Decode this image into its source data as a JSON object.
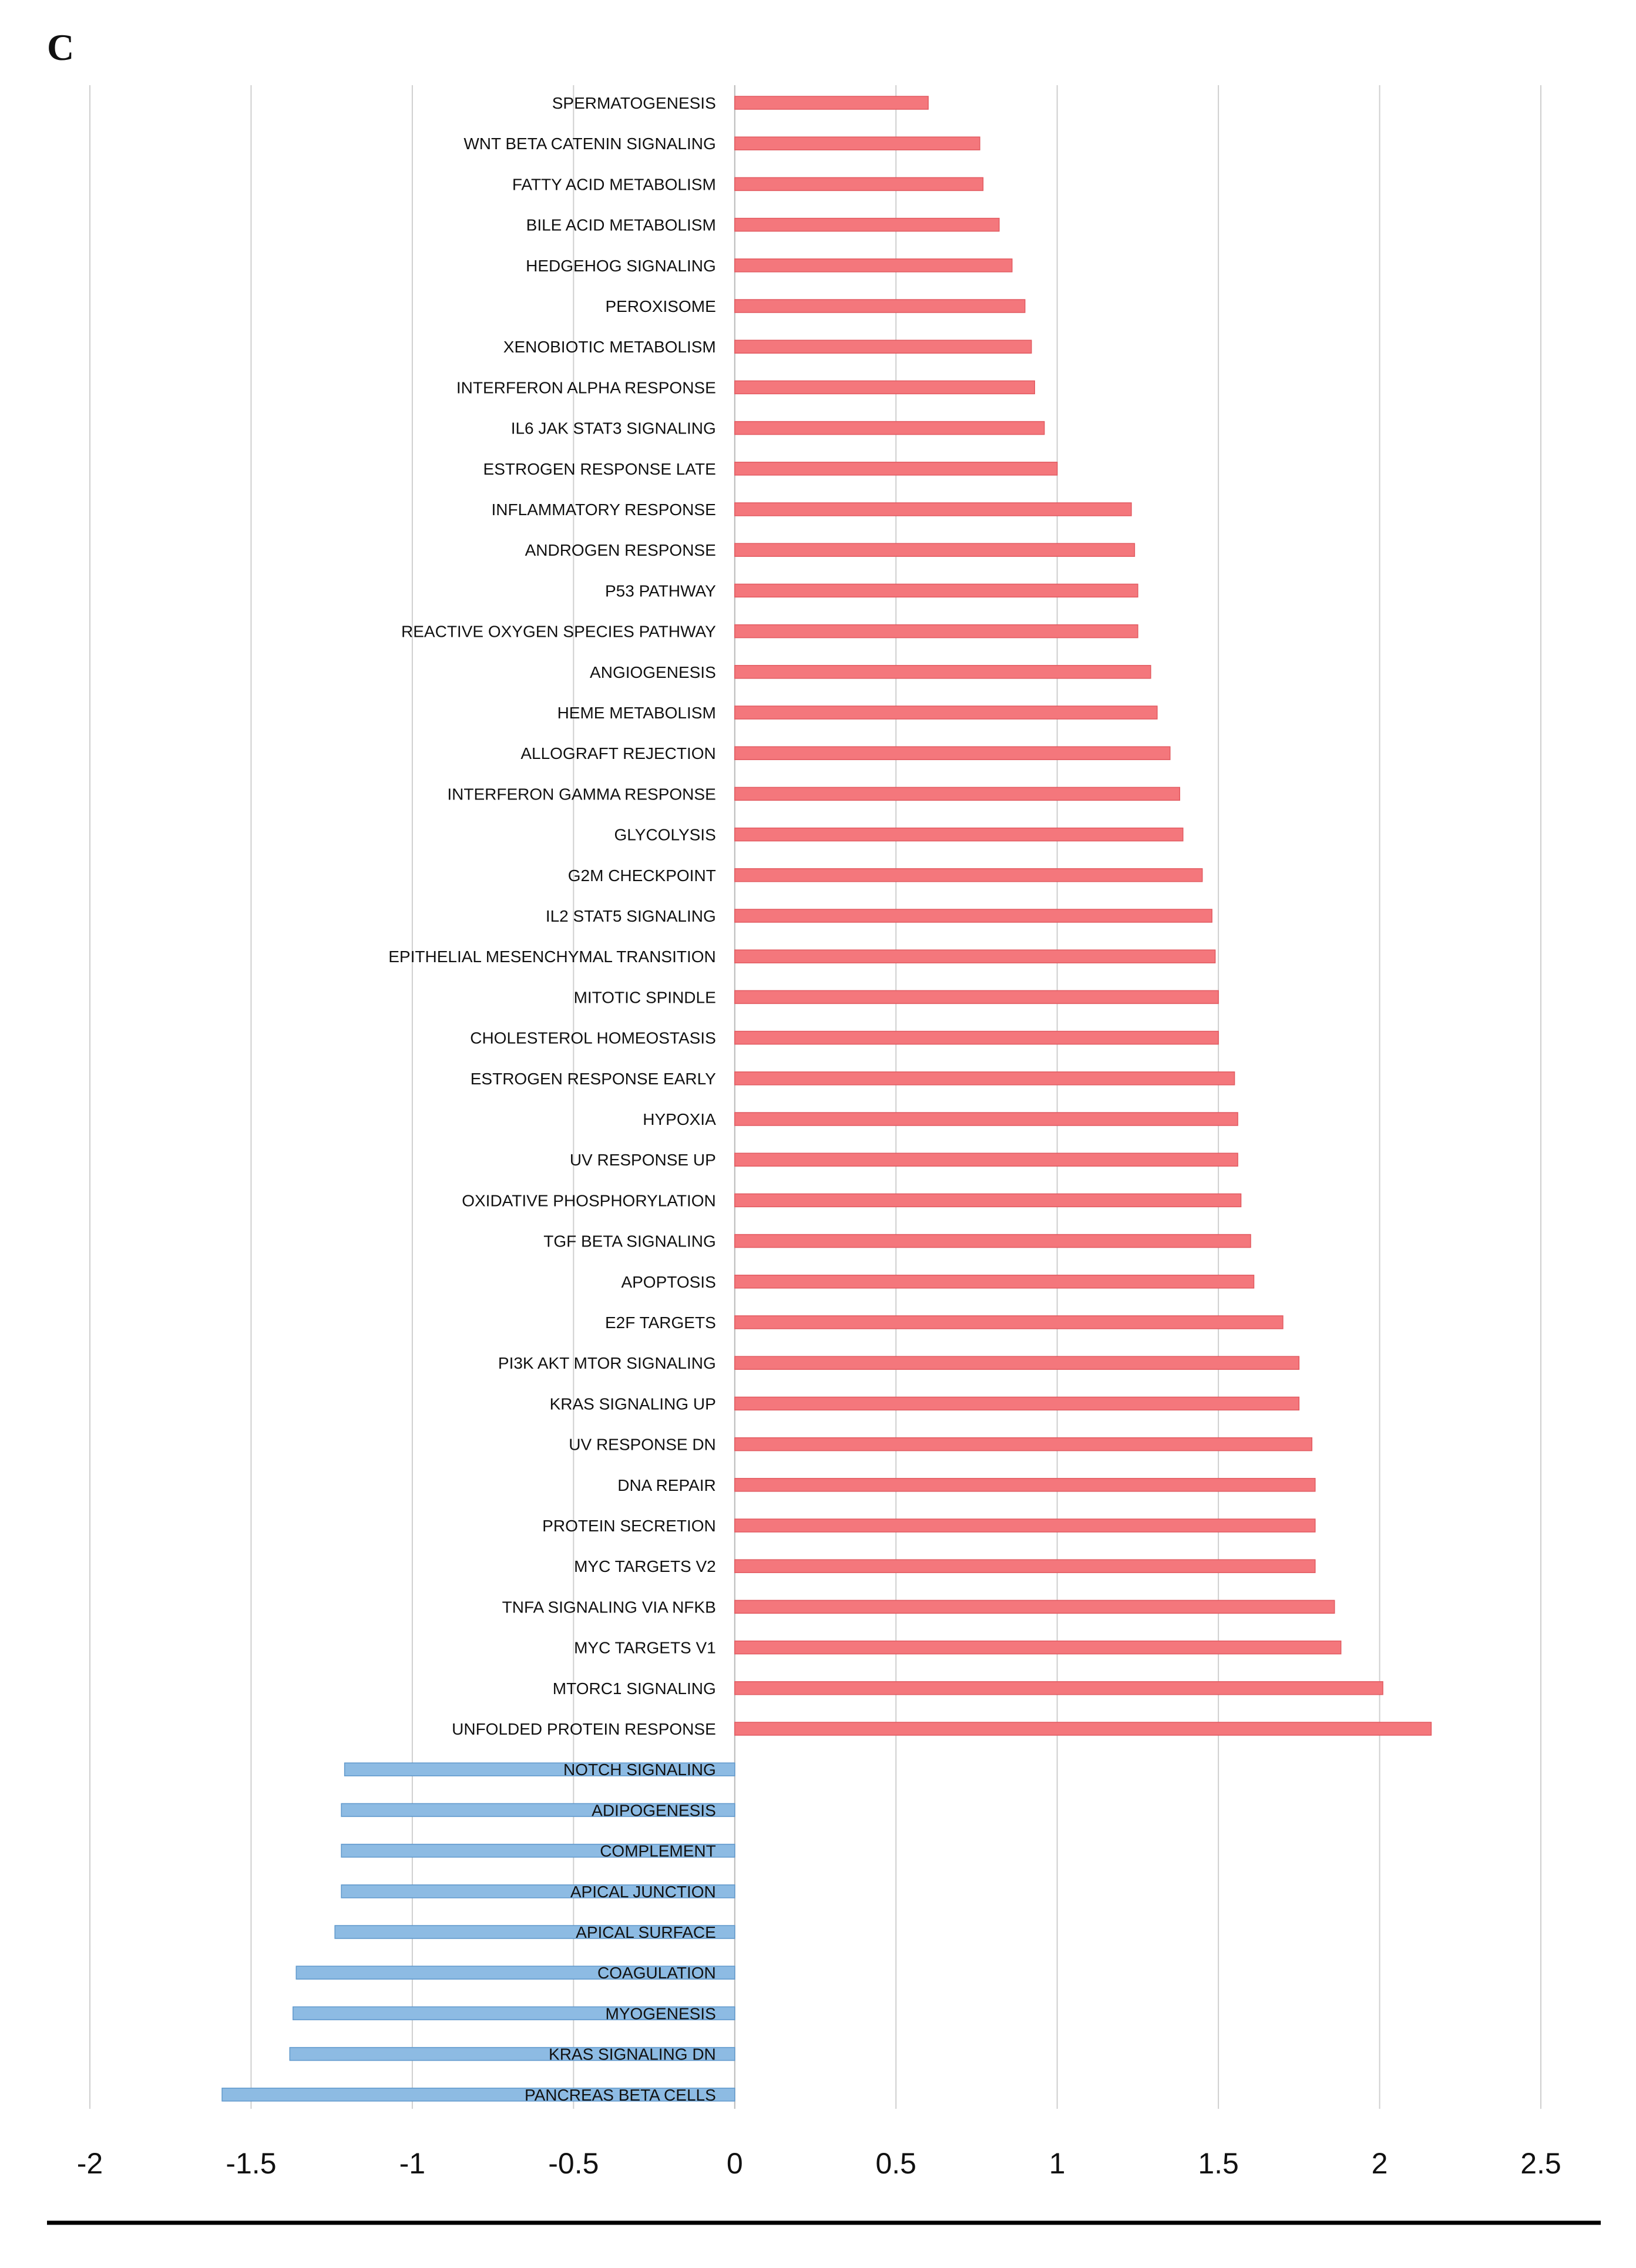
{
  "panel_label": "C",
  "chart_data": {
    "type": "bar",
    "orientation": "horizontal",
    "title": "",
    "xlabel": "",
    "ylabel": "",
    "xlim": [
      -2,
      2.5
    ],
    "x_ticks": [
      -2,
      -1.5,
      -1,
      -0.5,
      0,
      0.5,
      1,
      1.5,
      2,
      2.5
    ],
    "x_tick_labels": [
      "-2",
      "-1.5",
      "-1",
      "-0.5",
      "0",
      "0.5",
      "1",
      "1.5",
      "2",
      "2.5"
    ],
    "grid": "vertical",
    "colors": {
      "positive": "#f4777c",
      "negative": "#8dbbe3",
      "positive_edge": "#e25a60",
      "negative_edge": "#5f98cc"
    },
    "categories": [
      "SPERMATOGENESIS",
      "WNT BETA CATENIN SIGNALING",
      "FATTY ACID METABOLISM",
      "BILE ACID METABOLISM",
      "HEDGEHOG SIGNALING",
      "PEROXISOME",
      "XENOBIOTIC METABOLISM",
      "INTERFERON ALPHA RESPONSE",
      "IL6 JAK STAT3 SIGNALING",
      "ESTROGEN RESPONSE LATE",
      "INFLAMMATORY RESPONSE",
      "ANDROGEN RESPONSE",
      "P53 PATHWAY",
      "REACTIVE OXYGEN SPECIES PATHWAY",
      "ANGIOGENESIS",
      "HEME METABOLISM",
      "ALLOGRAFT REJECTION",
      "INTERFERON GAMMA RESPONSE",
      "GLYCOLYSIS",
      "G2M CHECKPOINT",
      "IL2 STAT5 SIGNALING",
      "EPITHELIAL MESENCHYMAL TRANSITION",
      "MITOTIC SPINDLE",
      "CHOLESTEROL HOMEOSTASIS",
      "ESTROGEN RESPONSE EARLY",
      "HYPOXIA",
      "UV RESPONSE UP",
      "OXIDATIVE PHOSPHORYLATION",
      "TGF BETA SIGNALING",
      "APOPTOSIS",
      "E2F TARGETS",
      "PI3K AKT MTOR SIGNALING",
      "KRAS SIGNALING UP",
      "UV RESPONSE DN",
      "DNA REPAIR",
      "PROTEIN SECRETION",
      "MYC TARGETS V2",
      "TNFA SIGNALING VIA NFKB",
      "MYC TARGETS V1",
      "MTORC1 SIGNALING",
      "UNFOLDED PROTEIN RESPONSE",
      "NOTCH SIGNALING",
      "ADIPOGENESIS",
      "COMPLEMENT",
      "APICAL JUNCTION",
      "APICAL SURFACE",
      "COAGULATION",
      "MYOGENESIS",
      "KRAS SIGNALING DN",
      "PANCREAS BETA CELLS"
    ],
    "values": [
      0.6,
      0.76,
      0.77,
      0.82,
      0.86,
      0.9,
      0.92,
      0.93,
      0.96,
      1.0,
      1.23,
      1.24,
      1.25,
      1.25,
      1.29,
      1.31,
      1.35,
      1.38,
      1.39,
      1.45,
      1.48,
      1.49,
      1.5,
      1.5,
      1.55,
      1.56,
      1.56,
      1.57,
      1.6,
      1.61,
      1.7,
      1.75,
      1.75,
      1.79,
      1.8,
      1.8,
      1.8,
      1.86,
      1.88,
      2.01,
      2.16,
      -1.21,
      -1.22,
      -1.22,
      -1.22,
      -1.24,
      -1.36,
      -1.37,
      -1.38,
      -1.59
    ]
  }
}
